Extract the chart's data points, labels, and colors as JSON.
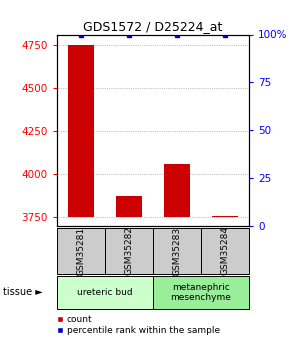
{
  "title": "GDS1572 / D25224_at",
  "samples": [
    "GSM35281",
    "GSM35282",
    "GSM35283",
    "GSM35284"
  ],
  "counts": [
    4750,
    3872,
    4062,
    3757
  ],
  "percentiles": [
    99.5,
    99.5,
    99.5,
    99.5
  ],
  "ylim_left": [
    3700,
    4810
  ],
  "ylim_right": [
    0,
    100
  ],
  "yticks_left": [
    3750,
    4000,
    4250,
    4500,
    4750
  ],
  "yticks_right": [
    0,
    25,
    50,
    75,
    100
  ],
  "ytick_labels_right": [
    "0",
    "25",
    "50",
    "75",
    "100%"
  ],
  "bar_color": "#cc0000",
  "dot_color": "#0000cc",
  "tissue_groups": [
    {
      "label": "ureteric bud",
      "samples": [
        0,
        1
      ],
      "color": "#ccffcc"
    },
    {
      "label": "metanephric\nmesenchyme",
      "samples": [
        2,
        3
      ],
      "color": "#99ee99"
    }
  ],
  "tissue_label": "tissue ►",
  "grid_color": "#888888",
  "sample_box_color": "#cccccc",
  "bar_width": 0.55
}
